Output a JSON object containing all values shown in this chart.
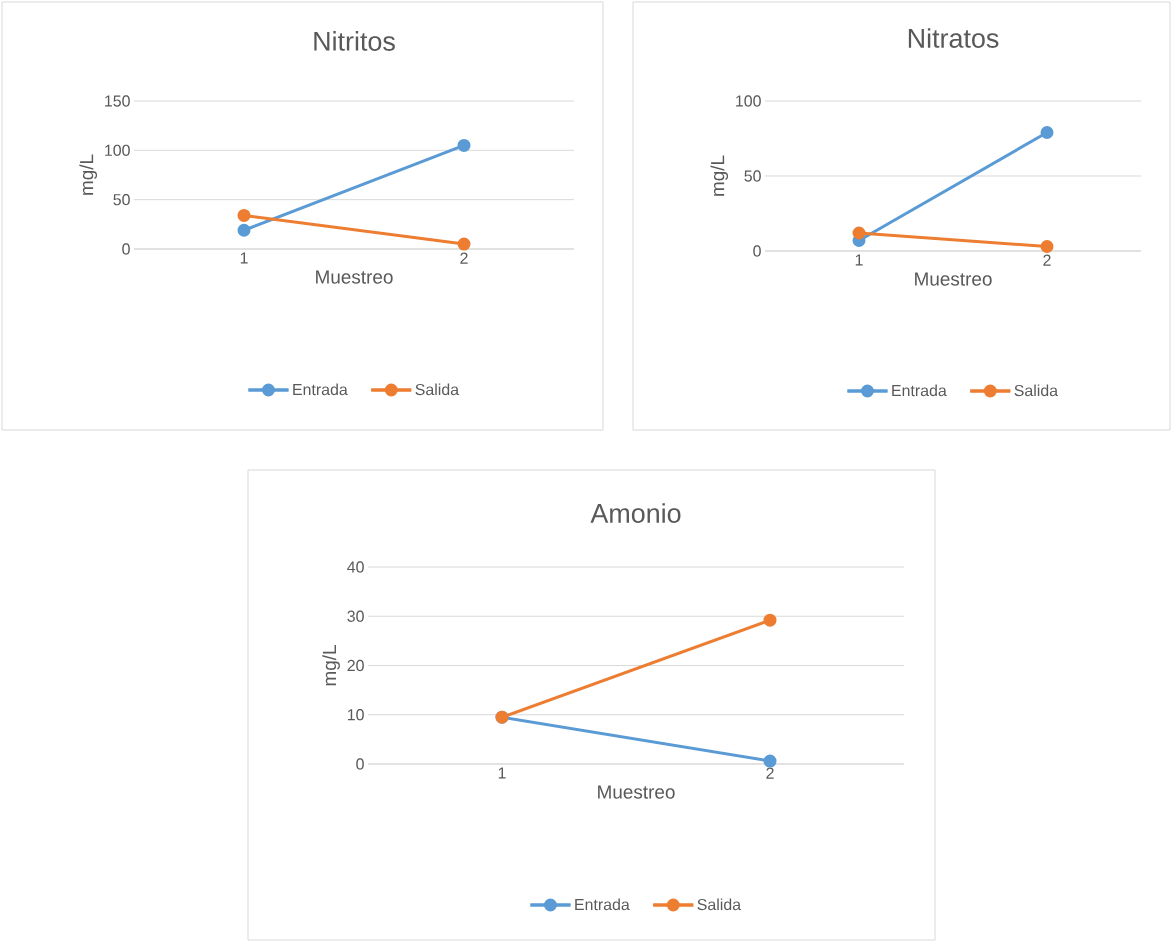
{
  "chart_data": [
    {
      "type": "line",
      "title": "Nitritos",
      "xlabel": "Muestreo",
      "ylabel": "mg/L",
      "categories": [
        "1",
        "2"
      ],
      "series": [
        {
          "name": "Entrada",
          "color": "#5b9bd5",
          "values": [
            19,
            105
          ]
        },
        {
          "name": "Salida",
          "color": "#ed7d31",
          "values": [
            34,
            5
          ]
        }
      ],
      "ylim": [
        0,
        150
      ],
      "yticks": [
        0,
        50,
        100,
        150
      ],
      "grid": "y",
      "legend": "bottom",
      "marker": "circle"
    },
    {
      "type": "line",
      "title": "Nitratos",
      "xlabel": "Muestreo",
      "ylabel": "mg/L",
      "categories": [
        "1",
        "2"
      ],
      "series": [
        {
          "name": "Entrada",
          "color": "#5b9bd5",
          "values": [
            7,
            79
          ]
        },
        {
          "name": "Salida",
          "color": "#ed7d31",
          "values": [
            12,
            3
          ]
        }
      ],
      "ylim": [
        0,
        100
      ],
      "yticks": [
        0,
        50,
        100
      ],
      "grid": "y",
      "legend": "bottom",
      "marker": "circle"
    },
    {
      "type": "line",
      "title": "Amonio",
      "xlabel": "Muestreo",
      "ylabel": "mg/L",
      "categories": [
        "1",
        "2"
      ],
      "series": [
        {
          "name": "Entrada",
          "color": "#5b9bd5",
          "values": [
            9.5,
            0.6
          ]
        },
        {
          "name": "Salida",
          "color": "#ed7d31",
          "values": [
            9.5,
            29.2
          ]
        }
      ],
      "ylim": [
        0,
        40
      ],
      "yticks": [
        0,
        10,
        20,
        30,
        40
      ],
      "grid": "y",
      "legend": "bottom",
      "marker": "circle"
    }
  ]
}
